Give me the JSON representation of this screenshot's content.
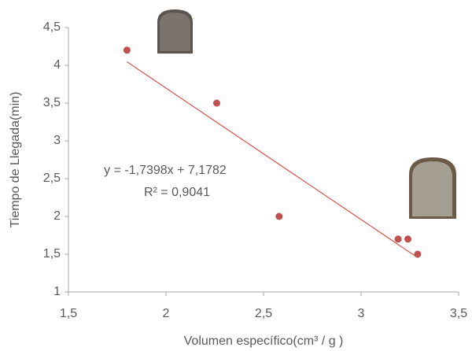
{
  "chart_data": {
    "type": "scatter",
    "xlabel": "Volumen específico(cm³ / g )",
    "ylabel": "Tiempo de Llegada(min)",
    "series": [
      {
        "color": "#c0504d",
        "x": [
          1.8,
          2.26,
          2.58,
          3.19,
          3.24,
          3.29
        ],
        "values": [
          4.2,
          3.5,
          2.0,
          1.7,
          1.7,
          1.5
        ]
      }
    ],
    "trendline": {
      "color": "#d9534f",
      "slope": -1.7398,
      "intercept": 7.1782,
      "equation_label": "y = -1,7398x + 7,1782",
      "r2_label": "R² = 0,9041"
    },
    "xlim": [
      1.5,
      3.5
    ],
    "xticks": [
      {
        "value": 1.5,
        "label": "1,5"
      },
      2,
      {
        "value": 2.5,
        "label": "2,5"
      },
      3,
      {
        "value": 3.5,
        "label": "3,5"
      }
    ],
    "ylim": [
      1,
      4.5
    ],
    "yticks": [
      1,
      {
        "value": 1.5,
        "label": "1,5"
      },
      2,
      {
        "value": 2.5,
        "label": "2,5"
      },
      3,
      {
        "value": 3.5,
        "label": "3,5"
      },
      4,
      {
        "value": 4.5,
        "label": "4,5"
      }
    ]
  }
}
